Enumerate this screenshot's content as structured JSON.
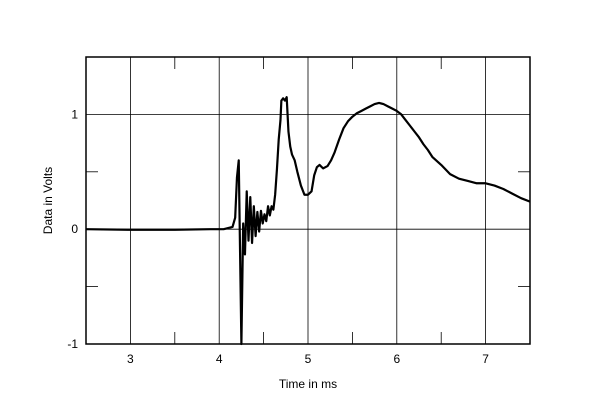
{
  "chart_data": {
    "type": "line",
    "xlabel": "Time in ms",
    "ylabel": "Data in Volts",
    "xlim": [
      2.5,
      7.5
    ],
    "ylim": [
      -1,
      1.5
    ],
    "x_ticks": [
      3,
      4,
      5,
      6,
      7
    ],
    "x_tick_labels": [
      "3",
      "4",
      "5",
      "6",
      "7"
    ],
    "y_ticks": [
      -1,
      0,
      1
    ],
    "y_tick_labels": [
      "-1",
      "0",
      "1"
    ],
    "grid": true,
    "series": [
      {
        "x": [
          2.5,
          3.0,
          3.5,
          3.9,
          4.05,
          4.15,
          4.18,
          4.2,
          4.22,
          4.235,
          4.25,
          4.27,
          4.29,
          4.31,
          4.33,
          4.35,
          4.37,
          4.39,
          4.41,
          4.43,
          4.45,
          4.47,
          4.49,
          4.51,
          4.53,
          4.55,
          4.57,
          4.59,
          4.61,
          4.63,
          4.65,
          4.67,
          4.69,
          4.7,
          4.72,
          4.74,
          4.76,
          4.78,
          4.8,
          4.82,
          4.85,
          4.88,
          4.92,
          4.96,
          5.0,
          5.04,
          5.07,
          5.1,
          5.13,
          5.17,
          5.22,
          5.26,
          5.3,
          5.35,
          5.4,
          5.45,
          5.5,
          5.55,
          5.6,
          5.65,
          5.7,
          5.75,
          5.8,
          5.85,
          5.9,
          5.95,
          6.0,
          6.05,
          6.1,
          6.15,
          6.2,
          6.25,
          6.3,
          6.35,
          6.4,
          6.5,
          6.6,
          6.7,
          6.8,
          6.9,
          7.0,
          7.1,
          7.2,
          7.3,
          7.4,
          7.5
        ],
        "y": [
          0.0,
          -0.005,
          -0.005,
          0.0,
          0.0,
          0.02,
          0.1,
          0.45,
          0.6,
          -0.2,
          -1.0,
          0.05,
          -0.22,
          0.33,
          -0.1,
          0.28,
          -0.12,
          0.2,
          -0.06,
          0.15,
          -0.02,
          0.16,
          0.05,
          0.13,
          0.07,
          0.2,
          0.12,
          0.2,
          0.17,
          0.3,
          0.52,
          0.78,
          0.95,
          1.12,
          1.14,
          1.12,
          1.15,
          0.85,
          0.72,
          0.65,
          0.6,
          0.5,
          0.38,
          0.3,
          0.3,
          0.33,
          0.47,
          0.54,
          0.56,
          0.53,
          0.55,
          0.6,
          0.67,
          0.78,
          0.88,
          0.94,
          0.98,
          1.01,
          1.03,
          1.05,
          1.07,
          1.09,
          1.1,
          1.09,
          1.07,
          1.05,
          1.03,
          1.0,
          0.95,
          0.9,
          0.85,
          0.8,
          0.74,
          0.69,
          0.63,
          0.56,
          0.48,
          0.44,
          0.42,
          0.4,
          0.4,
          0.38,
          0.35,
          0.31,
          0.27,
          0.24
        ]
      }
    ]
  }
}
